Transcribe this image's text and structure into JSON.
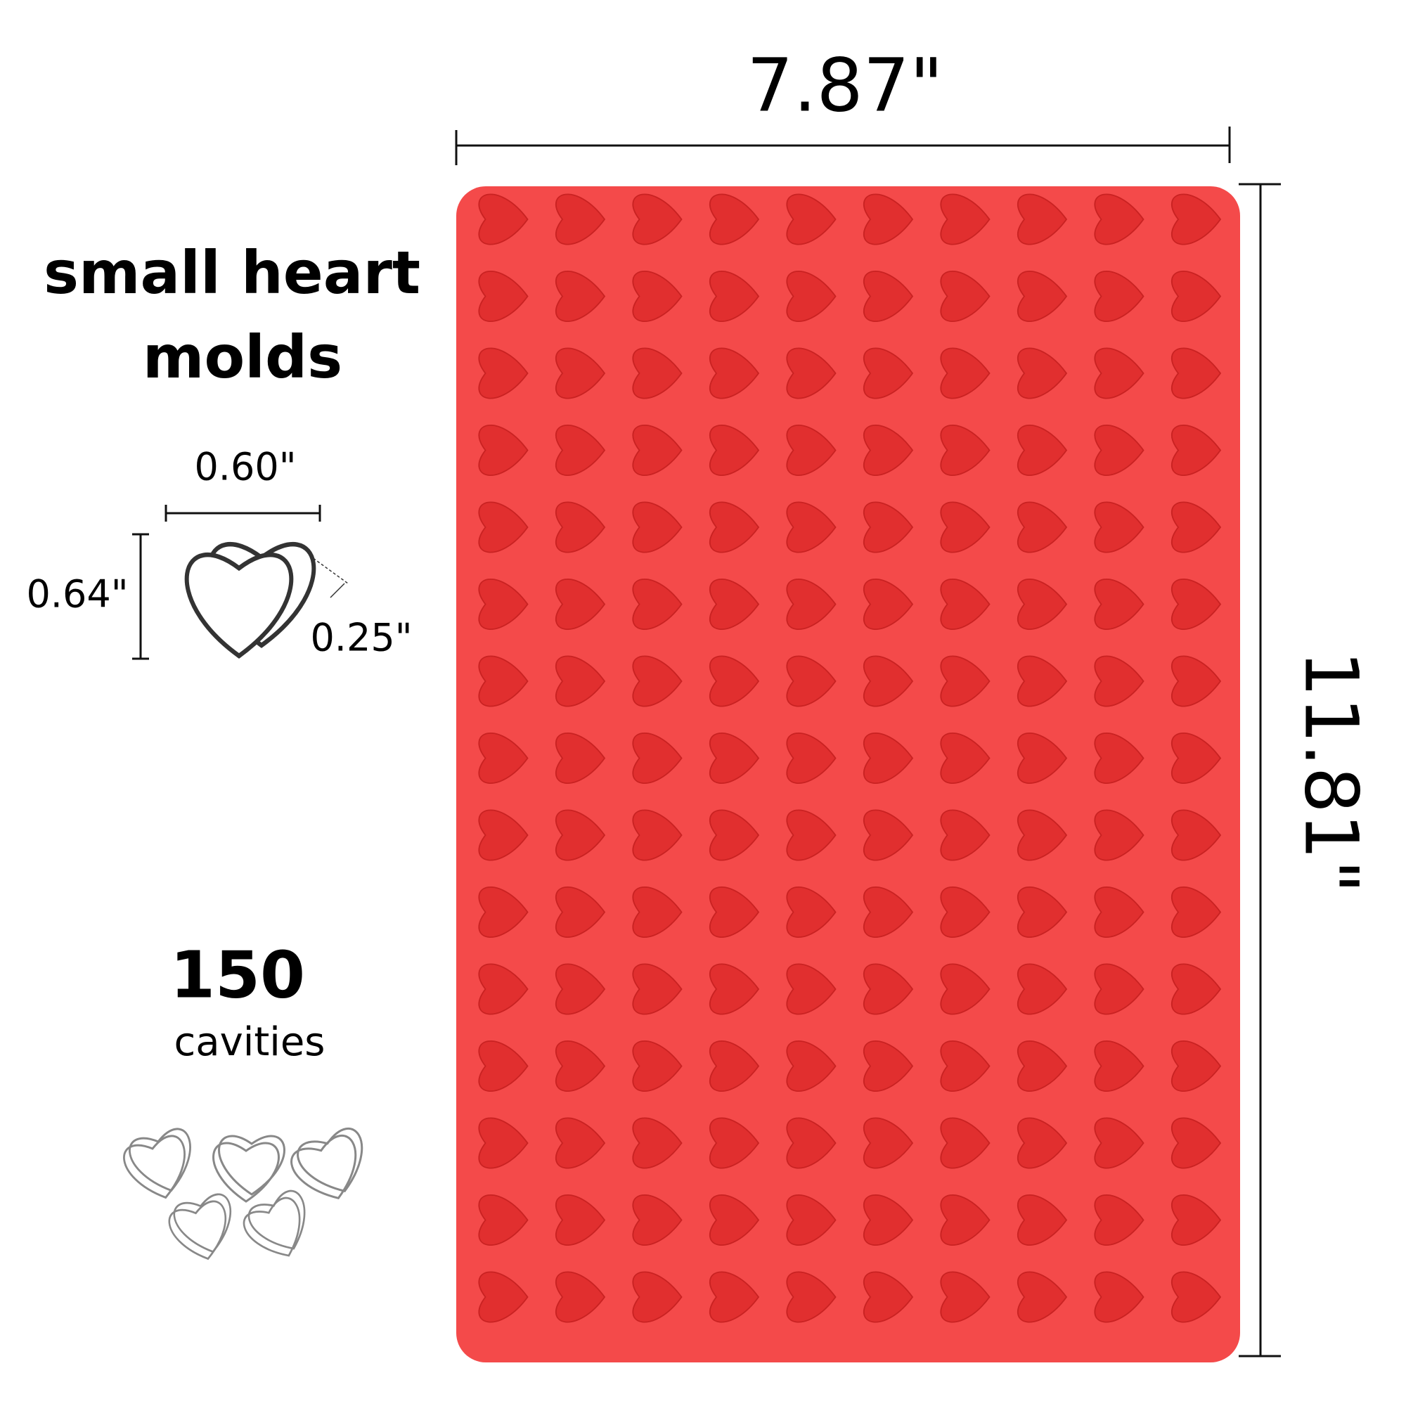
{
  "product": {
    "width": "7.87\"",
    "length": "11.81\"",
    "title_lines": [
      "small heart",
      "molds"
    ],
    "cavity": {
      "width": "0.60\"",
      "height": "0.64\"",
      "depth": "0.25\""
    },
    "count": {
      "number": "150",
      "label": "cavities"
    }
  }
}
